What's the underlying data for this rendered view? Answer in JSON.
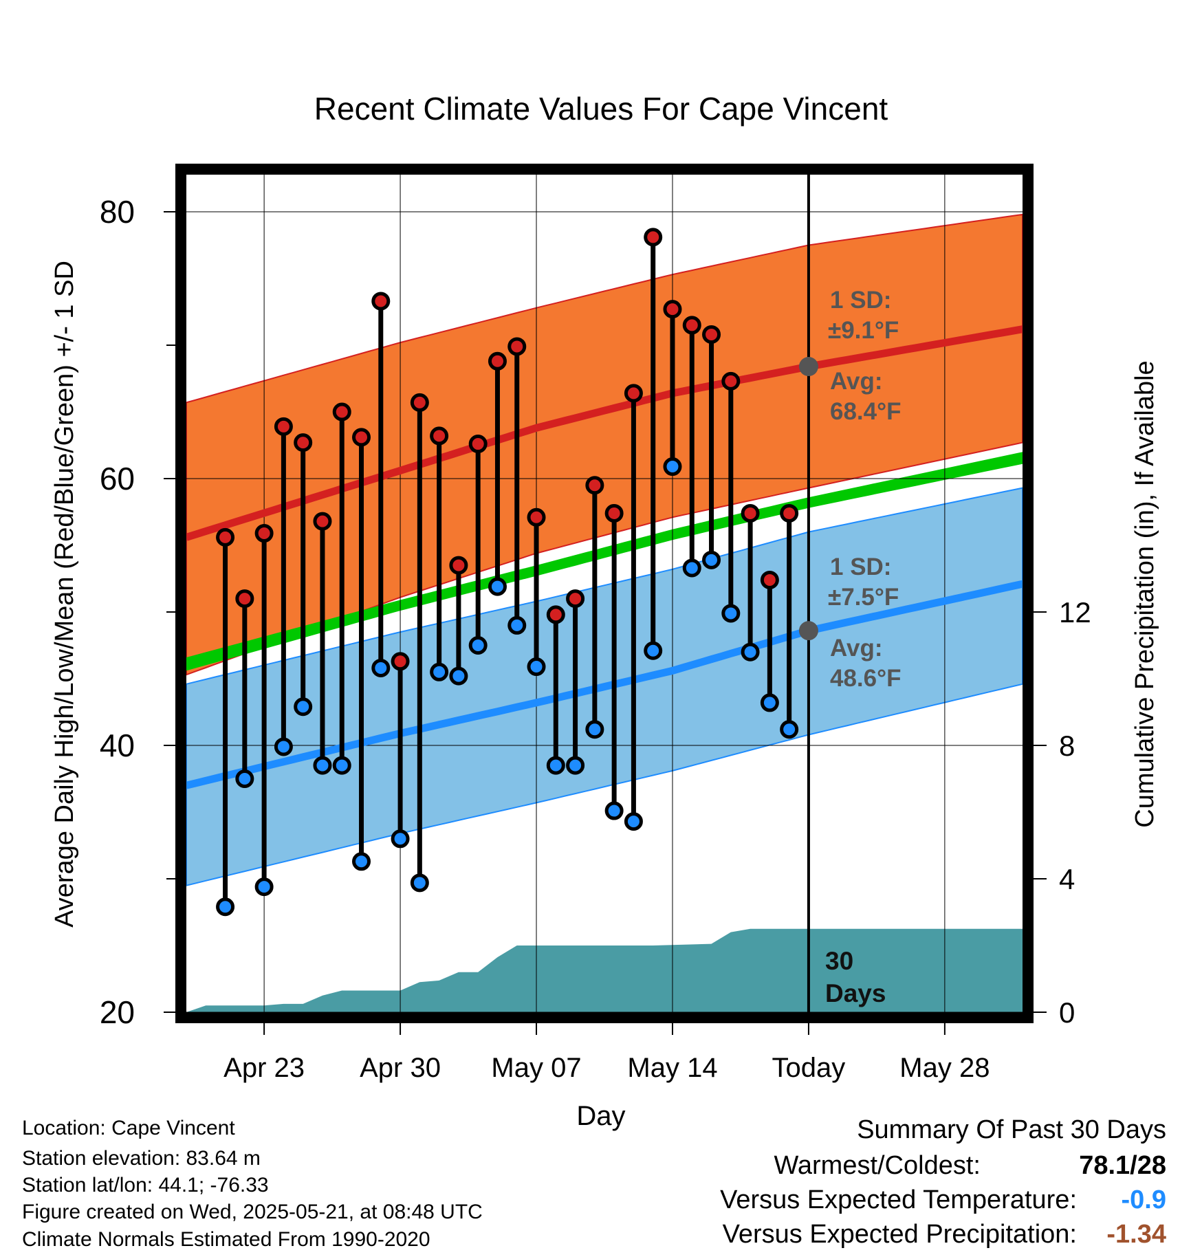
{
  "chart_data": {
    "type": "line",
    "title": "Recent Climate Values For Cape Vincent",
    "xlabel": "Day",
    "ylabel": "Average Daily High/Low/Mean (Red/Blue/Green) +/- 1 SD",
    "y2label": "Cumulative Precipitation (in), If Available",
    "x_domain": [
      "2025-04-19",
      "2025-06-01"
    ],
    "x_ticks": [
      {
        "date": "2025-04-23",
        "label": "Apr 23"
      },
      {
        "date": "2025-04-30",
        "label": "Apr 30"
      },
      {
        "date": "2025-05-07",
        "label": "May 07"
      },
      {
        "date": "2025-05-14",
        "label": "May 14"
      },
      {
        "date": "2025-05-21",
        "label": "Today"
      },
      {
        "date": "2025-05-28",
        "label": "May 28"
      }
    ],
    "ylim": [
      20,
      80
    ],
    "y_ticks": [
      20,
      40,
      60,
      80
    ],
    "y2lim": [
      0,
      24
    ],
    "y2_ticks": [
      0,
      4,
      8,
      12
    ],
    "today": "2025-05-21",
    "normals": {
      "dates": [
        "2025-04-19",
        "2025-04-30",
        "2025-05-07",
        "2025-05-14",
        "2025-05-21",
        "2025-06-01"
      ],
      "high_avg": [
        55.6,
        60.6,
        63.8,
        66.4,
        68.4,
        71.2
      ],
      "high_upper": [
        65.7,
        70.2,
        72.8,
        75.3,
        77.5,
        79.8
      ],
      "high_lower": [
        45.3,
        51.1,
        54.4,
        57.1,
        59.3,
        62.7
      ],
      "mean_upper": [
        46.6,
        50.9,
        53.5,
        56.2,
        58.6,
        62.0
      ],
      "mean_lower": [
        45.6,
        50.1,
        52.7,
        55.4,
        57.8,
        61.1
      ],
      "low_avg": [
        37.0,
        40.9,
        43.2,
        45.6,
        48.6,
        52.1
      ],
      "low_upper": [
        44.6,
        48.5,
        50.8,
        53.2,
        56.0,
        59.3
      ],
      "low_lower": [
        29.5,
        33.4,
        35.7,
        38.1,
        40.8,
        44.6
      ]
    },
    "high_sd_label": "1 SD:",
    "high_sd_value": "±9.1°F",
    "high_avg_label": "Avg:",
    "high_avg_value": "68.4°F",
    "low_sd_label": "1 SD:",
    "low_sd_value": "±7.5°F",
    "low_avg_label": "Avg:",
    "low_avg_value": "48.6°F",
    "days_label_1": "30",
    "days_label_2": "Days",
    "observations": [
      {
        "date": "2025-04-21",
        "high": 55.6,
        "low": 27.9
      },
      {
        "date": "2025-04-22",
        "high": 51.0,
        "low": 37.5
      },
      {
        "date": "2025-04-23",
        "high": 55.9,
        "low": 29.4
      },
      {
        "date": "2025-04-24",
        "high": 63.9,
        "low": 39.9
      },
      {
        "date": "2025-04-25",
        "high": 62.7,
        "low": 42.9
      },
      {
        "date": "2025-04-26",
        "high": 56.8,
        "low": 38.5
      },
      {
        "date": "2025-04-27",
        "high": 65.0,
        "low": 38.5
      },
      {
        "date": "2025-04-28",
        "high": 63.1,
        "low": 31.3
      },
      {
        "date": "2025-04-29",
        "high": 73.3,
        "low": 45.8
      },
      {
        "date": "2025-04-30",
        "high": 46.3,
        "low": 33.0
      },
      {
        "date": "2025-05-01",
        "high": 65.7,
        "low": 29.7
      },
      {
        "date": "2025-05-02",
        "high": 63.2,
        "low": 45.5
      },
      {
        "date": "2025-05-03",
        "high": 53.5,
        "low": 45.2
      },
      {
        "date": "2025-05-04",
        "high": 62.6,
        "low": 47.5
      },
      {
        "date": "2025-05-05",
        "high": 68.8,
        "low": 51.9
      },
      {
        "date": "2025-05-06",
        "high": 69.9,
        "low": 49.0
      },
      {
        "date": "2025-05-07",
        "high": 57.1,
        "low": 45.9
      },
      {
        "date": "2025-05-08",
        "high": 49.8,
        "low": 38.5
      },
      {
        "date": "2025-05-09",
        "high": 51.0,
        "low": 38.5
      },
      {
        "date": "2025-05-10",
        "high": 59.5,
        "low": 41.2
      },
      {
        "date": "2025-05-11",
        "high": 57.4,
        "low": 35.1
      },
      {
        "date": "2025-05-12",
        "high": 66.4,
        "low": 34.3
      },
      {
        "date": "2025-05-13",
        "high": 78.1,
        "low": 47.1
      },
      {
        "date": "2025-05-14",
        "high": 72.7,
        "low": 60.9
      },
      {
        "date": "2025-05-15",
        "high": 71.5,
        "low": 53.3
      },
      {
        "date": "2025-05-16",
        "high": 70.8,
        "low": 53.9
      },
      {
        "date": "2025-05-17",
        "high": 67.3,
        "low": 49.9
      },
      {
        "date": "2025-05-18",
        "high": 57.4,
        "low": 47.0
      },
      {
        "date": "2025-05-19",
        "high": 52.4,
        "low": 43.2
      },
      {
        "date": "2025-05-20",
        "high": 57.4,
        "low": 41.2
      }
    ],
    "precip": {
      "dates": [
        "2025-04-19",
        "2025-04-20",
        "2025-04-22",
        "2025-04-23",
        "2025-04-24",
        "2025-04-25",
        "2025-04-26",
        "2025-04-27",
        "2025-04-28",
        "2025-04-30",
        "2025-05-01",
        "2025-05-02",
        "2025-05-03",
        "2025-05-04",
        "2025-05-05",
        "2025-05-06",
        "2025-05-07",
        "2025-05-13",
        "2025-05-16",
        "2025-05-17",
        "2025-05-18",
        "2025-05-21",
        "2025-06-01"
      ],
      "values": [
        0.0,
        0.2,
        0.2,
        0.2,
        0.25,
        0.25,
        0.5,
        0.65,
        0.65,
        0.65,
        0.9,
        0.95,
        1.2,
        1.2,
        1.65,
        2.0,
        2.0,
        2.0,
        2.05,
        2.4,
        2.5,
        2.5,
        2.5
      ]
    },
    "colors": {
      "high_band": "#f47830",
      "high_line": "#d42020",
      "low_band": "#83c1e7",
      "low_line": "#1e8cff",
      "mean_band": "#00c800",
      "precip_fill": "#4a9ca4",
      "annotation": "#555555"
    },
    "grid": true
  },
  "info": {
    "location": "Location: Cape Vincent",
    "elevation": "Station elevation: 83.64 m",
    "latlon": "Station lat/lon: 44.1; -76.33",
    "created": "Figure created on Wed, 2025-05-21, at 08:48 UTC",
    "normals": "Climate Normals Estimated From 1990-2020"
  },
  "summary": {
    "title": "Summary Of Past 30 Days",
    "warm_cold_label": "Warmest/Coldest:",
    "warm_cold_value": "78.1/28",
    "temp_label": "Versus Expected Temperature:",
    "temp_value": "-0.9",
    "temp_color": "#1e8cff",
    "precip_label": "Versus Expected Precipitation:",
    "precip_value": "-1.34",
    "precip_color": "#a0522d"
  }
}
